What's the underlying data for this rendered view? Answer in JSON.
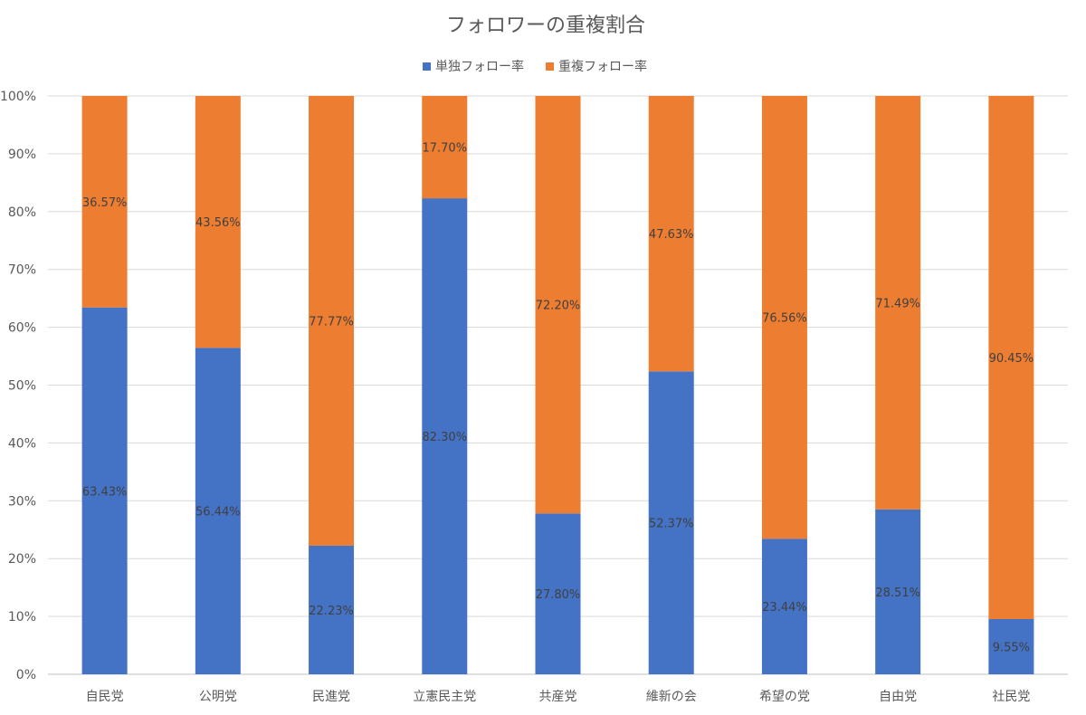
{
  "chart_data": {
    "type": "bar",
    "stacked": true,
    "title": "フォロワーの重複割合",
    "categories": [
      "自民党",
      "公明党",
      "民進党",
      "立憲民主党",
      "共産党",
      "維新の会",
      "希望の党",
      "自由党",
      "社民党"
    ],
    "series": [
      {
        "name": "単独フォロー率",
        "color": "#4472C4",
        "values": [
          63.43,
          56.44,
          22.23,
          82.3,
          27.8,
          52.37,
          23.44,
          28.51,
          9.55
        ],
        "labels": [
          "63.43%",
          "56.44%",
          "22.23%",
          "82.30%",
          "27.80%",
          "52.37%",
          "23.44%",
          "28.51%",
          "9.55%"
        ]
      },
      {
        "name": "重複フォロー率",
        "color": "#ED7D31",
        "values": [
          36.57,
          43.56,
          77.77,
          17.7,
          72.2,
          47.63,
          76.56,
          71.49,
          90.45
        ],
        "labels": [
          "36.57%",
          "43.56%",
          "77.77%",
          "17.70%",
          "72.20%",
          "47.63%",
          "76.56%",
          "71.49%",
          "90.45%"
        ]
      }
    ],
    "ylim": [
      0,
      100
    ],
    "yticks": [
      "0%",
      "10%",
      "20%",
      "30%",
      "40%",
      "50%",
      "60%",
      "70%",
      "80%",
      "90%",
      "100%"
    ],
    "grid": true,
    "legend_position": "top-center",
    "xlabel": "",
    "ylabel": ""
  }
}
